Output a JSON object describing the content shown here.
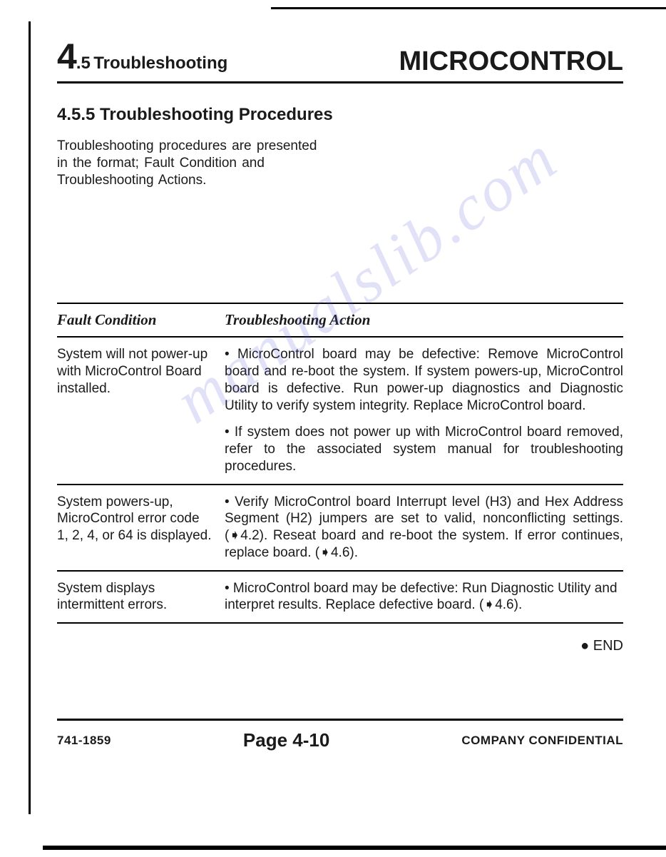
{
  "header": {
    "section_number": "4",
    "section_decimal": ".5",
    "section_label": "Troubleshooting",
    "title": "MICROCONTROL"
  },
  "subheading": "4.5.5 Troubleshooting Procedures",
  "intro": "Troubleshooting procedures are presented in the format; Fault Condition and Troubleshooting Actions.",
  "watermark": "manualslib.com",
  "table": {
    "columns": [
      "Fault Condition",
      "Troubleshooting Action"
    ],
    "rows": [
      {
        "fault": "System will not power-up with MicroControl Board installed.",
        "actions": [
          "• MicroControl board may be defective: Remove MicroControl board and re-boot the system. If system powers-up, MicroControl board is defective. Run power-up diagnostics and Diagnostic Utility to verify system integrity. Replace MicroControl board.",
          "• If system does not power up with MicroControl board removed, refer to the associated system manual for troubleshooting procedures."
        ]
      },
      {
        "fault": "System powers-up, MicroControl error code 1, 2, 4, or 64 is displayed.",
        "actions": [
          "• Verify MicroControl board Interrupt level (H3) and Hex Address Segment (H2) jumpers are set to valid, nonconflicting settings. (➧4.2). Reseat board and re-boot the system. If error continues, replace board. (➧4.6)."
        ]
      },
      {
        "fault": "System displays intermittent errors.",
        "actions": [
          "• MicroControl board may be defective: Run Diagnostic Utility and interpret results. Replace defective board. (➧4.6)."
        ]
      }
    ]
  },
  "end_marker": "● END",
  "footer": {
    "left": "741-1859",
    "center": "Page 4-10",
    "right": "COMPANY CONFIDENTIAL"
  }
}
